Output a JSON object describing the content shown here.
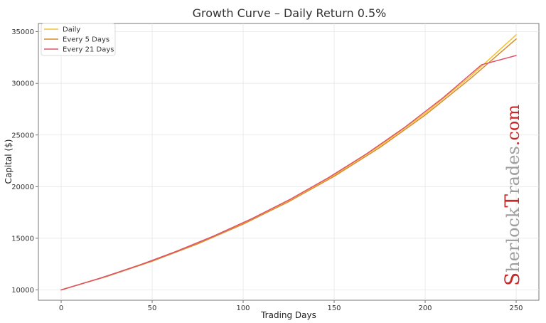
{
  "chart_data": {
    "type": "line",
    "title": "Growth Curve – Daily Return 0.5%",
    "xlabel": "Trading Days",
    "ylabel": "Capital ($)",
    "xlim": [
      -12.5,
      262.5
    ],
    "ylim": [
      9000,
      35800
    ],
    "xticks": [
      0,
      50,
      100,
      150,
      200,
      250
    ],
    "yticks": [
      10000,
      15000,
      20000,
      25000,
      30000,
      35000
    ],
    "grid": true,
    "legend_position": "top-left",
    "series": [
      {
        "name": "Daily",
        "color": "#f2c12e",
        "x": [
          0,
          25,
          50,
          75,
          100,
          125,
          150,
          175,
          200,
          225,
          250
        ],
        "y": [
          10000,
          11330,
          12832,
          14531,
          16467,
          18660,
          21130,
          23930,
          27100,
          30700,
          34700
        ]
      },
      {
        "name": "Every 5 Days",
        "color": "#d98a2b",
        "x": [
          0,
          25,
          50,
          75,
          100,
          125,
          150,
          175,
          200,
          225,
          250
        ],
        "y": [
          10000,
          11300,
          12780,
          14460,
          16370,
          18540,
          21000,
          23780,
          26930,
          30480,
          34300
        ]
      },
      {
        "name": "Every 21 Days",
        "color": "#e0526a",
        "x": [
          0,
          21,
          42,
          63,
          84,
          105,
          126,
          147,
          168,
          189,
          210,
          231,
          250
        ],
        "y": [
          10000,
          11110,
          12340,
          13710,
          15230,
          16920,
          18790,
          20880,
          23200,
          25770,
          28630,
          31800,
          32700
        ]
      }
    ]
  },
  "watermark": {
    "S": "S",
    "herlock": "herlock",
    "T": "T",
    "rades": "rades",
    "dotcom": ".com"
  }
}
